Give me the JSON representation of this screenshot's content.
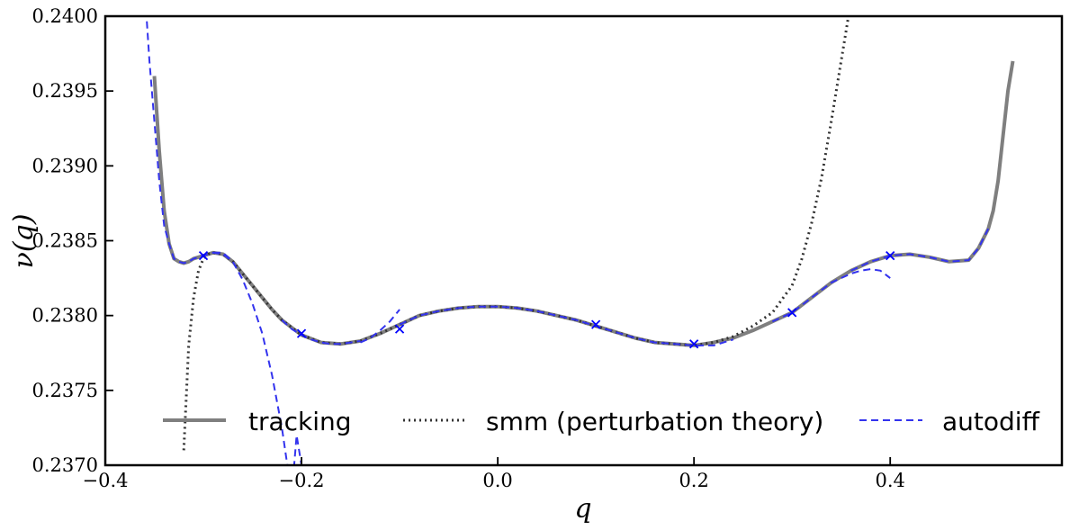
{
  "chart_data": {
    "type": "line",
    "title": "",
    "xlabel": "q",
    "ylabel": "ν(q)",
    "xlim": [
      -0.4,
      0.575
    ],
    "ylim": [
      0.237,
      0.24
    ],
    "grid": false,
    "legend_position": "bottom, single row",
    "x_ticks": [
      -0.4,
      -0.2,
      0.0,
      0.2,
      0.4
    ],
    "x_tick_labels": [
      "−0.4",
      "−0.2",
      "0.0",
      "0.2",
      "0.4"
    ],
    "y_ticks": [
      0.237,
      0.2375,
      0.238,
      0.2385,
      0.239,
      0.2395,
      0.24
    ],
    "y_tick_labels": [
      "0.2370",
      "0.2375",
      "0.2380",
      "0.2385",
      "0.2390",
      "0.2395",
      "0.2400"
    ],
    "series": [
      {
        "name": "tracking",
        "color": "#7f7f7f",
        "style": "solid-thick",
        "x": [
          -0.35,
          -0.345,
          -0.34,
          -0.335,
          -0.33,
          -0.325,
          -0.32,
          -0.315,
          -0.31,
          -0.3,
          -0.29,
          -0.28,
          -0.27,
          -0.26,
          -0.25,
          -0.24,
          -0.23,
          -0.22,
          -0.2,
          -0.18,
          -0.16,
          -0.14,
          -0.12,
          -0.1,
          -0.08,
          -0.06,
          -0.04,
          -0.02,
          0.0,
          0.02,
          0.04,
          0.06,
          0.08,
          0.1,
          0.12,
          0.14,
          0.16,
          0.18,
          0.2,
          0.22,
          0.24,
          0.26,
          0.28,
          0.3,
          0.32,
          0.34,
          0.36,
          0.38,
          0.4,
          0.42,
          0.44,
          0.46,
          0.48,
          0.49,
          0.5,
          0.505,
          0.51,
          0.515,
          0.52,
          0.525
        ],
        "y": [
          0.2396,
          0.2391,
          0.2387,
          0.23848,
          0.23838,
          0.23836,
          0.23835,
          0.23836,
          0.23838,
          0.2384,
          0.23842,
          0.23841,
          0.23836,
          0.23828,
          0.2382,
          0.23812,
          0.23804,
          0.23797,
          0.23787,
          0.23782,
          0.23781,
          0.23783,
          0.23788,
          0.23794,
          0.238,
          0.23803,
          0.23805,
          0.23806,
          0.23806,
          0.23805,
          0.23803,
          0.238,
          0.23797,
          0.23793,
          0.23789,
          0.23785,
          0.23782,
          0.23781,
          0.2378,
          0.23782,
          0.23785,
          0.2379,
          0.23796,
          0.23802,
          0.23812,
          0.23822,
          0.2383,
          0.23836,
          0.2384,
          0.23841,
          0.23839,
          0.23836,
          0.23837,
          0.23845,
          0.23858,
          0.2387,
          0.2389,
          0.2392,
          0.2395,
          0.2397
        ]
      },
      {
        "name": "smm (perturbation theory)",
        "color": "#333333",
        "style": "dotted",
        "x": [
          -0.32,
          -0.315,
          -0.31,
          -0.305,
          -0.3,
          -0.295,
          -0.29,
          -0.28,
          -0.27,
          -0.26,
          -0.25,
          -0.24,
          -0.23,
          -0.22,
          -0.2,
          -0.18,
          -0.16,
          -0.14,
          -0.12,
          -0.1,
          -0.08,
          -0.06,
          -0.04,
          -0.02,
          0.0,
          0.02,
          0.04,
          0.06,
          0.08,
          0.1,
          0.12,
          0.14,
          0.16,
          0.18,
          0.2,
          0.22,
          0.24,
          0.26,
          0.28,
          0.3,
          0.31,
          0.32,
          0.33,
          0.34,
          0.35,
          0.355,
          0.36
        ],
        "y": [
          0.2371,
          0.2378,
          0.23812,
          0.2383,
          0.23838,
          0.23841,
          0.23842,
          0.23841,
          0.23836,
          0.23828,
          0.2382,
          0.23812,
          0.23804,
          0.23797,
          0.23787,
          0.23782,
          0.23781,
          0.23783,
          0.23788,
          0.23794,
          0.238,
          0.23803,
          0.23805,
          0.23806,
          0.23806,
          0.23805,
          0.23803,
          0.238,
          0.23797,
          0.23793,
          0.23789,
          0.23785,
          0.23782,
          0.23781,
          0.2378,
          0.23782,
          0.23786,
          0.23793,
          0.23802,
          0.2382,
          0.23838,
          0.23862,
          0.23892,
          0.2393,
          0.2397,
          0.2399,
          0.2401
        ]
      },
      {
        "name": "autodiff",
        "color": "#3333ee",
        "style": "dashed",
        "segments": [
          {
            "x": [
              -0.36,
              -0.355,
              -0.35,
              -0.345,
              -0.34,
              -0.335,
              -0.33,
              -0.325,
              -0.32,
              -0.315,
              -0.31,
              -0.3,
              -0.29,
              -0.28,
              -0.27
            ],
            "y": [
              0.2402,
              0.2397,
              0.2393,
              0.2389,
              0.2386,
              0.23848,
              0.23838,
              0.23836,
              0.23835,
              0.23836,
              0.23838,
              0.2384,
              0.23842,
              0.23841,
              0.23836
            ]
          },
          {
            "x": [
              -0.29,
              -0.28,
              -0.27,
              -0.26,
              -0.25,
              -0.24,
              -0.23,
              -0.22,
              -0.21,
              -0.205,
              -0.2
            ],
            "y": [
              0.23842,
              0.23842,
              0.23836,
              0.23824,
              0.23808,
              0.23788,
              0.2376,
              0.23725,
              0.2368,
              0.2372,
              0.237
            ]
          },
          {
            "x": [
              -0.22,
              -0.21,
              -0.2,
              -0.19,
              -0.18,
              -0.17,
              -0.16,
              -0.15,
              -0.14
            ],
            "y": [
              0.23797,
              0.23791,
              0.23787,
              0.23784,
              0.23782,
              0.23781,
              0.23781,
              0.23782,
              0.23783
            ]
          },
          {
            "x": [
              -0.14,
              -0.13,
              -0.12,
              -0.11,
              -0.1
            ],
            "y": [
              0.23782,
              0.23785,
              0.2379,
              0.23796,
              0.23804
            ]
          },
          {
            "x": [
              -0.1,
              -0.08,
              -0.06,
              -0.04,
              -0.02,
              0.0,
              0.02,
              0.04,
              0.06,
              0.08,
              0.1,
              0.12,
              0.14,
              0.16,
              0.18,
              0.2,
              0.22,
              0.24
            ],
            "y": [
              0.23794,
              0.238,
              0.23803,
              0.23805,
              0.23806,
              0.23806,
              0.23805,
              0.23803,
              0.238,
              0.23797,
              0.23793,
              0.23789,
              0.23785,
              0.23782,
              0.23781,
              0.2378,
              0.2378,
              0.23784
            ]
          },
          {
            "x": [
              0.28,
              0.3,
              0.32,
              0.34,
              0.36,
              0.37,
              0.38,
              0.39,
              0.4
            ],
            "y": [
              0.23796,
              0.23802,
              0.23812,
              0.23822,
              0.23828,
              0.2383,
              0.23831,
              0.2383,
              0.23825
            ]
          },
          {
            "x": [
              0.36,
              0.38,
              0.4,
              0.42,
              0.44,
              0.46,
              0.48,
              0.49,
              0.5
            ],
            "y": [
              0.2383,
              0.23836,
              0.2384,
              0.23841,
              0.23839,
              0.23836,
              0.23837,
              0.23845,
              0.23858
            ]
          }
        ]
      }
    ],
    "markers": {
      "symbol": "x",
      "color": "#0000ff",
      "points": [
        {
          "x": -0.3,
          "y": 0.2384
        },
        {
          "x": -0.2,
          "y": 0.23788
        },
        {
          "x": -0.1,
          "y": 0.23791
        },
        {
          "x": 0.1,
          "y": 0.23794
        },
        {
          "x": 0.2,
          "y": 0.23781
        },
        {
          "x": 0.3,
          "y": 0.23802
        },
        {
          "x": 0.4,
          "y": 0.2384
        }
      ]
    }
  }
}
